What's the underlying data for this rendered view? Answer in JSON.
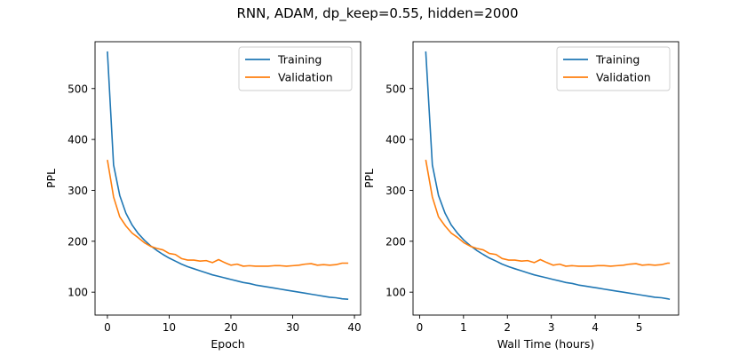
{
  "figure": {
    "title": "RNN, ADAM, dp_keep=0.55, hidden=2000"
  },
  "colors": {
    "training": "#1f77b4",
    "validation": "#ff7f0e"
  },
  "chart_data": [
    {
      "type": "line",
      "title": "",
      "xlabel": "Epoch",
      "ylabel": "PPL",
      "xlim": [
        -2,
        41
      ],
      "ylim": [
        55,
        592
      ],
      "xticks": [
        0,
        10,
        20,
        30,
        40
      ],
      "yticks": [
        100,
        200,
        300,
        400,
        500
      ],
      "legend": "upper right",
      "grid": false,
      "series": [
        {
          "name": "Training",
          "x": [
            0,
            1,
            2,
            3,
            4,
            5,
            6,
            7,
            8,
            9,
            10,
            11,
            12,
            13,
            14,
            15,
            16,
            17,
            18,
            19,
            20,
            21,
            22,
            23,
            24,
            25,
            26,
            27,
            28,
            29,
            30,
            31,
            32,
            33,
            34,
            35,
            36,
            37,
            38,
            39
          ],
          "y": [
            573,
            350,
            290,
            255,
            232,
            215,
            202,
            191,
            182,
            174,
            167,
            161,
            155,
            150,
            146,
            142,
            138,
            134,
            131,
            128,
            125,
            122,
            119,
            117,
            114,
            112,
            110,
            108,
            106,
            104,
            102,
            100,
            98,
            96,
            94,
            92,
            90,
            89,
            87,
            86
          ]
        },
        {
          "name": "Validation",
          "x": [
            0,
            1,
            2,
            3,
            4,
            5,
            6,
            7,
            8,
            9,
            10,
            11,
            12,
            13,
            14,
            15,
            16,
            17,
            18,
            19,
            20,
            21,
            22,
            23,
            24,
            25,
            26,
            27,
            28,
            29,
            30,
            31,
            32,
            33,
            34,
            35,
            36,
            37,
            38,
            39
          ],
          "y": [
            360,
            287,
            248,
            230,
            216,
            207,
            197,
            190,
            186,
            183,
            176,
            174,
            166,
            163,
            163,
            161,
            162,
            158,
            164,
            158,
            153,
            155,
            151,
            152,
            151,
            151,
            151,
            152,
            152,
            151,
            152,
            153,
            155,
            156,
            153,
            154,
            153,
            154,
            157,
            157
          ]
        }
      ]
    },
    {
      "type": "line",
      "title": "",
      "xlabel": "Wall Time (hours)",
      "ylabel": "PPL",
      "xlim": [
        -0.15,
        5.9
      ],
      "ylim": [
        55,
        592
      ],
      "xticks": [
        0,
        1,
        2,
        3,
        4,
        5
      ],
      "yticks": [
        100,
        200,
        300,
        400,
        500
      ],
      "legend": "upper right",
      "grid": false,
      "series": [
        {
          "name": "Training",
          "x": [
            0.14,
            0.29,
            0.43,
            0.58,
            0.72,
            0.87,
            1.01,
            1.16,
            1.3,
            1.45,
            1.59,
            1.74,
            1.88,
            2.03,
            2.17,
            2.32,
            2.46,
            2.61,
            2.75,
            2.9,
            3.04,
            3.19,
            3.33,
            3.48,
            3.62,
            3.77,
            3.91,
            4.06,
            4.2,
            4.35,
            4.49,
            4.64,
            4.78,
            4.93,
            5.07,
            5.22,
            5.36,
            5.51,
            5.65,
            5.7
          ],
          "y": [
            573,
            350,
            290,
            255,
            232,
            215,
            202,
            191,
            182,
            174,
            167,
            161,
            155,
            150,
            146,
            142,
            138,
            134,
            131,
            128,
            125,
            122,
            119,
            117,
            114,
            112,
            110,
            108,
            106,
            104,
            102,
            100,
            98,
            96,
            94,
            92,
            90,
            89,
            87,
            86
          ]
        },
        {
          "name": "Validation",
          "x": [
            0.14,
            0.29,
            0.43,
            0.58,
            0.72,
            0.87,
            1.01,
            1.16,
            1.3,
            1.45,
            1.59,
            1.74,
            1.88,
            2.03,
            2.17,
            2.32,
            2.46,
            2.61,
            2.75,
            2.9,
            3.04,
            3.19,
            3.33,
            3.48,
            3.62,
            3.77,
            3.91,
            4.06,
            4.2,
            4.35,
            4.49,
            4.64,
            4.78,
            4.93,
            5.07,
            5.22,
            5.36,
            5.51,
            5.65,
            5.7
          ],
          "y": [
            360,
            287,
            248,
            230,
            216,
            207,
            197,
            190,
            186,
            183,
            176,
            174,
            166,
            163,
            163,
            161,
            162,
            158,
            164,
            158,
            153,
            155,
            151,
            152,
            151,
            151,
            151,
            152,
            152,
            151,
            152,
            153,
            155,
            156,
            153,
            154,
            153,
            154,
            157,
            157
          ]
        }
      ]
    }
  ]
}
